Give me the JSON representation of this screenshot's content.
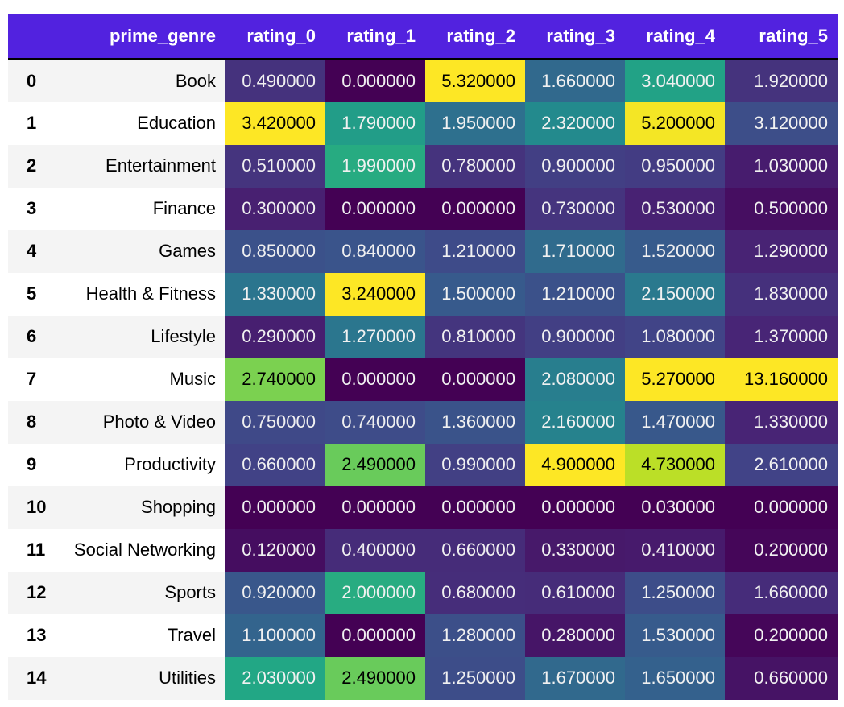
{
  "header": {
    "index_label": "",
    "genre_label": "prime_genre"
  },
  "style": {
    "header_bg": "#5222df",
    "header_text_color": "#ffffff",
    "stripe_bg": "#f4f4f4",
    "row_bg": "#ffffff",
    "divider_color": "#000000",
    "cell_text_light": "#f1f1f1",
    "cell_text_dark": "#000000"
  },
  "chart_data": {
    "type": "heatmap",
    "colormap": "viridis",
    "normalization": "per-column min-max",
    "decimals": 6,
    "legend": "none",
    "columns": [
      "rating_0",
      "rating_1",
      "rating_2",
      "rating_3",
      "rating_4",
      "rating_5"
    ],
    "rows": [
      {
        "index": "0",
        "prime_genre": "Book",
        "values": [
          0.49,
          0.0,
          5.32,
          1.66,
          3.04,
          1.92
        ]
      },
      {
        "index": "1",
        "prime_genre": "Education",
        "values": [
          3.42,
          1.79,
          1.95,
          2.32,
          5.2,
          3.12
        ]
      },
      {
        "index": "2",
        "prime_genre": "Entertainment",
        "values": [
          0.51,
          1.99,
          0.78,
          0.9,
          0.95,
          1.03
        ]
      },
      {
        "index": "3",
        "prime_genre": "Finance",
        "values": [
          0.3,
          0.0,
          0.0,
          0.73,
          0.53,
          0.5
        ]
      },
      {
        "index": "4",
        "prime_genre": "Games",
        "values": [
          0.85,
          0.84,
          1.21,
          1.71,
          1.52,
          1.29
        ]
      },
      {
        "index": "5",
        "prime_genre": "Health & Fitness",
        "values": [
          1.33,
          3.24,
          1.5,
          1.21,
          2.15,
          1.83
        ]
      },
      {
        "index": "6",
        "prime_genre": "Lifestyle",
        "values": [
          0.29,
          1.27,
          0.81,
          0.9,
          1.08,
          1.37
        ]
      },
      {
        "index": "7",
        "prime_genre": "Music",
        "values": [
          2.74,
          0.0,
          0.0,
          2.08,
          5.27,
          13.16
        ]
      },
      {
        "index": "8",
        "prime_genre": "Photo & Video",
        "values": [
          0.75,
          0.74,
          1.36,
          2.16,
          1.47,
          1.33
        ]
      },
      {
        "index": "9",
        "prime_genre": "Productivity",
        "values": [
          0.66,
          2.49,
          0.99,
          4.9,
          4.73,
          2.61
        ]
      },
      {
        "index": "10",
        "prime_genre": "Shopping",
        "values": [
          0.0,
          0.0,
          0.0,
          0.0,
          0.03,
          0.0
        ]
      },
      {
        "index": "11",
        "prime_genre": "Social Networking",
        "values": [
          0.12,
          0.4,
          0.66,
          0.33,
          0.41,
          0.2
        ]
      },
      {
        "index": "12",
        "prime_genre": "Sports",
        "values": [
          0.92,
          2.0,
          0.68,
          0.61,
          1.25,
          1.66
        ]
      },
      {
        "index": "13",
        "prime_genre": "Travel",
        "values": [
          1.1,
          0.0,
          1.28,
          0.28,
          1.53,
          0.2
        ]
      },
      {
        "index": "14",
        "prime_genre": "Utilities",
        "values": [
          2.03,
          2.49,
          1.25,
          1.67,
          1.65,
          0.66
        ]
      }
    ]
  }
}
